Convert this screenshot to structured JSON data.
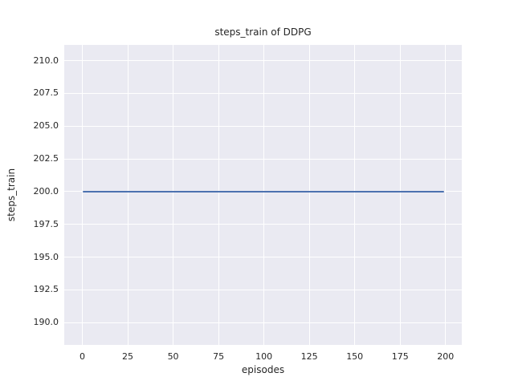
{
  "figure": {
    "title": "steps_train of DDPG"
  },
  "chart_data": {
    "type": "line",
    "title": "steps_train of DDPG",
    "xlabel": "episodes",
    "ylabel": "steps_train",
    "series": [
      {
        "name": "steps_train",
        "color": "#4c72b0",
        "x": [
          0,
          199
        ],
        "y": [
          200.0,
          200.0
        ],
        "description": "constant horizontal line at y=200 across all episodes"
      }
    ],
    "xlim": [
      -9.95,
      208.95
    ],
    "ylim": [
      188.3,
      211.2
    ],
    "xticks": [
      0,
      25,
      50,
      75,
      100,
      125,
      150,
      175,
      200
    ],
    "xtick_labels": [
      "0",
      "25",
      "50",
      "75",
      "100",
      "125",
      "150",
      "175",
      "200"
    ],
    "yticks": [
      190.0,
      192.5,
      195.0,
      197.5,
      200.0,
      202.5,
      205.0,
      207.5,
      210.0
    ],
    "ytick_labels": [
      "190.0",
      "192.5",
      "195.0",
      "197.5",
      "200.0",
      "202.5",
      "205.0",
      "207.5",
      "210.0"
    ],
    "grid": true,
    "legend": false,
    "style": "seaborn-darkgrid",
    "plot_background_color": "#eaeaf2",
    "grid_color": "#ffffff",
    "text_color": "#262626"
  }
}
